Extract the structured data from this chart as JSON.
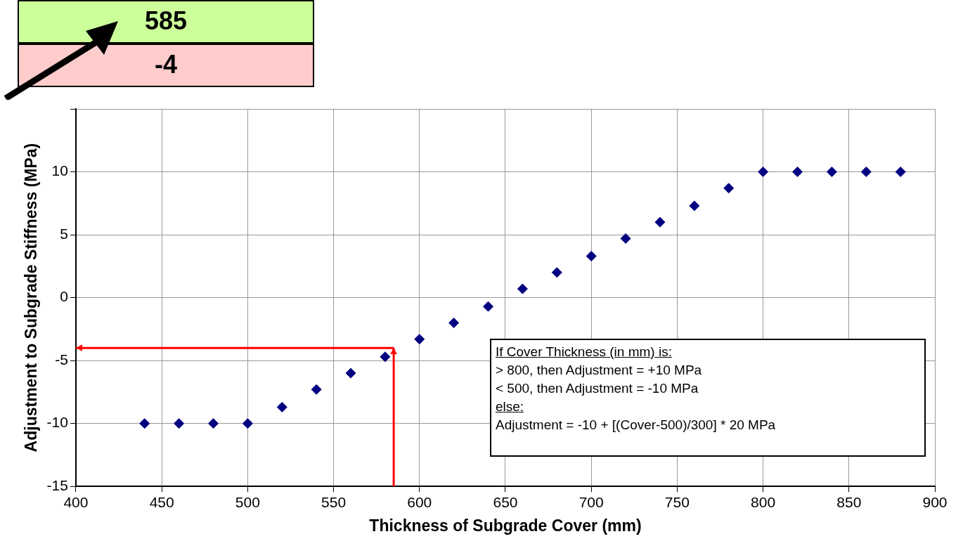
{
  "chart_data": {
    "type": "scatter",
    "xlabel": "Thickness of Subgrade Cover (mm)",
    "ylabel": "Adjustment to Subgrade Stiffness (MPa)",
    "x": [
      440,
      460,
      480,
      500,
      520,
      540,
      560,
      580,
      600,
      620,
      640,
      660,
      680,
      700,
      720,
      740,
      760,
      780,
      800,
      820,
      840,
      860,
      880
    ],
    "series": [
      {
        "color": "#000080",
        "values": [
          -10,
          -10,
          -10,
          -10,
          -8.7,
          -7.3,
          -6,
          -4.7,
          -3.3,
          -2,
          -0.7,
          0.7,
          2,
          3.3,
          4.7,
          6,
          7.3,
          8.7,
          10,
          10,
          10,
          10,
          10
        ]
      }
    ],
    "xlim": [
      400,
      900
    ],
    "xticks": [
      400,
      450,
      500,
      550,
      600,
      650,
      700,
      750,
      800,
      850,
      900
    ],
    "ylim": [
      -15,
      15
    ],
    "yticks": [
      -15,
      -10,
      -5,
      0,
      5,
      10,
      {
        "value": 15,
        "label": null
      }
    ],
    "grid": true,
    "legend": false,
    "marker": "diamond",
    "ref_lines": [
      {
        "axis": "x",
        "value": 585,
        "color": "#ff0000"
      },
      {
        "axis": "y",
        "value": -4,
        "color": "#ff0000"
      }
    ],
    "annotations": [
      "585",
      "-4",
      "If Cover Thickness (in mm) is:",
      "> 800, then Adjustment = +10 MPa",
      "< 500, then Adjustment = -10 MPa",
      "else:",
      "Adjustment = -10 + [(Cover-500)/300] * 20 MPa"
    ]
  }
}
